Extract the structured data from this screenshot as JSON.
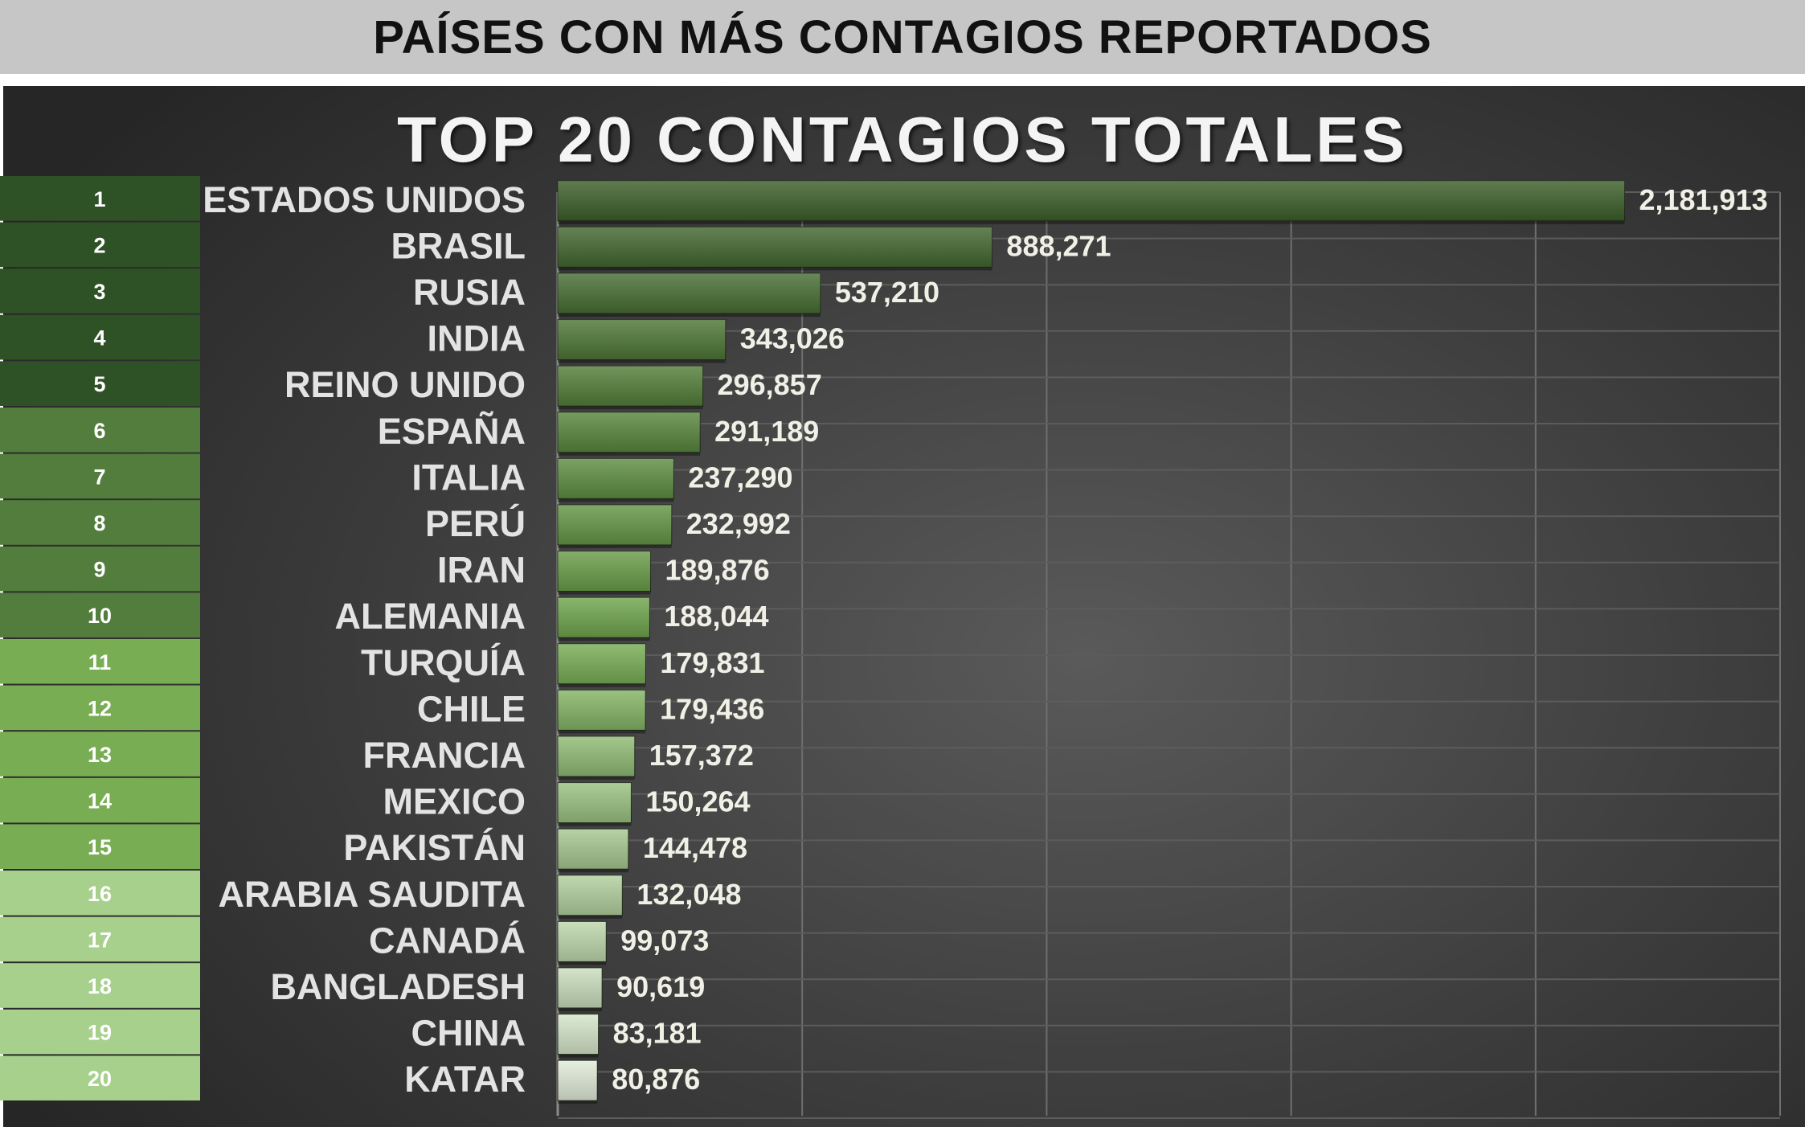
{
  "header": {
    "title": "PAÍSES CON MÁS CONTAGIOS REPORTADOS"
  },
  "chart_data": {
    "type": "bar",
    "orientation": "horizontal",
    "title": "TOP 20 CONTAGIOS TOTALES",
    "ranks": [
      "1",
      "2",
      "3",
      "4",
      "5",
      "6",
      "7",
      "8",
      "9",
      "10",
      "11",
      "12",
      "13",
      "14",
      "15",
      "16",
      "17",
      "18",
      "19",
      "20"
    ],
    "categories": [
      "ESTADOS UNIDOS",
      "BRASIL",
      "RUSIA",
      "INDIA",
      "REINO UNIDO",
      "ESPAÑA",
      "ITALIA",
      "PERÚ",
      "IRAN",
      "ALEMANIA",
      "TURQUÍA",
      "CHILE",
      "FRANCIA",
      "MEXICO",
      "PAKISTÁN",
      "ARABIA SAUDITA",
      "CANADÁ",
      "BANGLADESH",
      "CHINA",
      "KATAR"
    ],
    "values": [
      2181913,
      888271,
      537210,
      343026,
      296857,
      291189,
      237290,
      232992,
      189876,
      188044,
      179831,
      179436,
      157372,
      150264,
      144478,
      132048,
      99073,
      90619,
      83181,
      80876
    ],
    "value_labels": [
      "2,181,913",
      "888,271",
      "537,210",
      "343,026",
      "296,857",
      "291,189",
      "237,290",
      "232,992",
      "189,876",
      "188,044",
      "179,831",
      "179,436",
      "157,372",
      "150,264",
      "144,478",
      "132,048",
      "99,073",
      "90,619",
      "83,181",
      "80,876"
    ],
    "xlim": [
      0,
      2500000
    ],
    "grid": true,
    "colors": {
      "rank_groups": [
        "#2f5126",
        "#537d3c",
        "#79ad54",
        "#a8d08d"
      ],
      "bar_gradient_top": [
        "#3c5f2a",
        "#72a94e",
        "#e1ecd9"
      ]
    }
  }
}
